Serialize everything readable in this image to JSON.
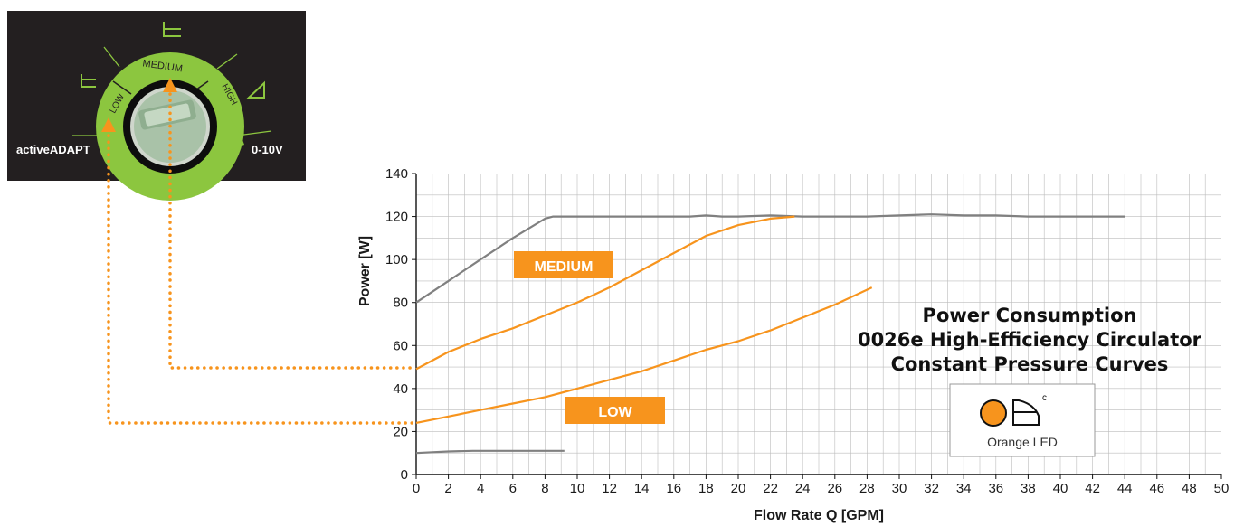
{
  "chart_data": {
    "type": "line",
    "title_lines": [
      "Power Consumption",
      "0026e High-Efficiency Circulator",
      "Constant Pressure Curves"
    ],
    "xlabel": "Flow Rate Q [GPM]",
    "ylabel": "Power [W]",
    "xlim": [
      0,
      50
    ],
    "ylim": [
      0,
      140
    ],
    "x_ticks": [
      0,
      2,
      4,
      6,
      8,
      10,
      12,
      14,
      16,
      18,
      20,
      22,
      24,
      26,
      28,
      30,
      32,
      34,
      36,
      38,
      40,
      42,
      44,
      46,
      48,
      50
    ],
    "y_ticks": [
      0,
      20,
      40,
      60,
      80,
      100,
      120,
      140
    ],
    "grid": true,
    "series": [
      {
        "name": "HIGH",
        "color": "#808080",
        "x": [
          0,
          2,
          4,
          6,
          8,
          8.5,
          10,
          12,
          14,
          16,
          17,
          18,
          19,
          20,
          22,
          24,
          26,
          28,
          30,
          32,
          34,
          36,
          38,
          40,
          42,
          44
        ],
        "y": [
          80,
          90,
          100,
          110,
          119,
          120,
          120,
          120,
          120,
          120,
          120,
          120.5,
          120,
          120,
          120.5,
          120,
          120,
          120,
          120.5,
          121,
          120.5,
          120.5,
          120,
          120,
          120,
          120
        ]
      },
      {
        "name": "MEDIUM",
        "color": "#F7941D",
        "x": [
          0,
          2,
          4,
          6,
          8,
          10,
          12,
          14,
          16,
          18,
          20,
          22,
          23.5
        ],
        "y": [
          49,
          57,
          63,
          68,
          74,
          80,
          87,
          95,
          103,
          111,
          116,
          119,
          120
        ]
      },
      {
        "name": "LOW",
        "color": "#F7941D",
        "x": [
          0,
          2,
          4,
          6,
          8,
          10,
          12,
          14,
          16,
          18,
          20,
          22,
          24,
          26,
          28.3
        ],
        "y": [
          24,
          27,
          30,
          33,
          36,
          40,
          44,
          48,
          53,
          58,
          62,
          67,
          73,
          79,
          87
        ]
      },
      {
        "name": "activeADAPT",
        "color": "#808080",
        "x": [
          0,
          2,
          3.5,
          6,
          9.2
        ],
        "y": [
          10,
          10.7,
          11,
          11,
          11
        ]
      }
    ],
    "series_labels": [
      "MEDIUM",
      "LOW"
    ]
  },
  "legend_box": {
    "caption": "Orange LED",
    "symbol_superscript": "c",
    "led_color": "#F7941D"
  },
  "dial_panel": {
    "labels": {
      "low": "LOW",
      "medium": "MEDIUM",
      "high": "HIGH",
      "left": "activeADAPT",
      "right": "0-10V"
    },
    "ring_color": "#8CC63F",
    "pointer_color": "#F7941D"
  },
  "colors": {
    "accent_orange": "#F7941D",
    "curve_gray": "#808080",
    "grid": "#bcbcbc",
    "panel_bg": "#231f20"
  }
}
